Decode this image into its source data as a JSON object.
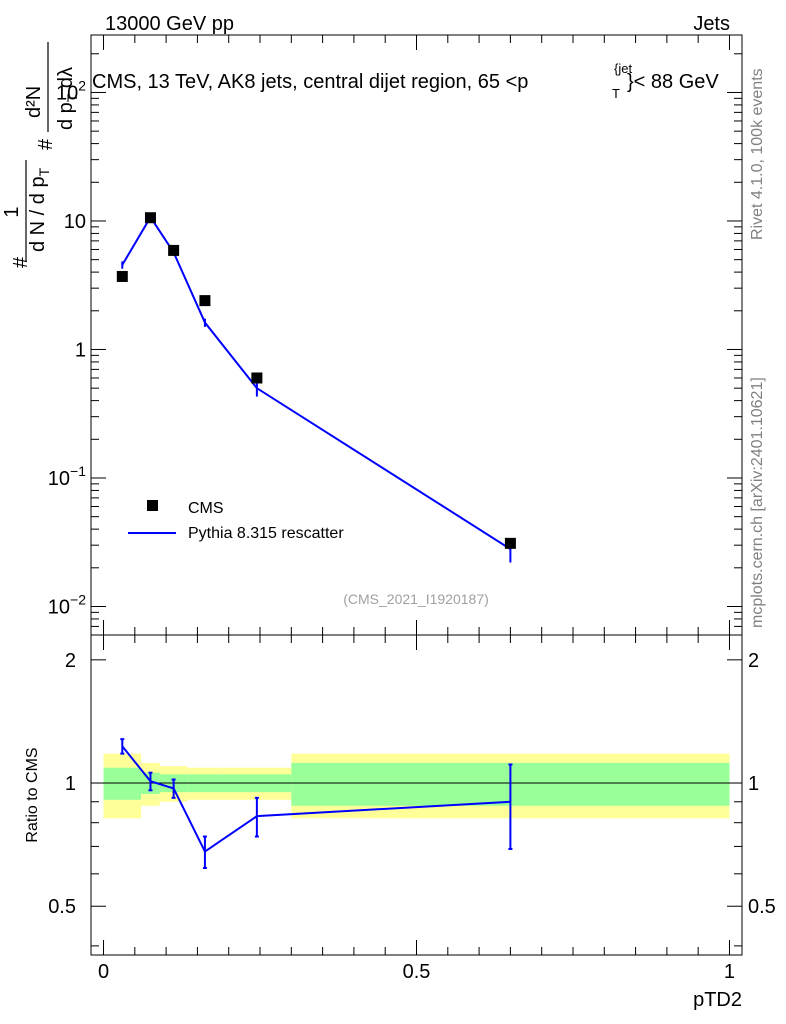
{
  "header": {
    "left": "13000 GeV pp",
    "right": "Jets"
  },
  "plot_title": {
    "main": "CMS, 13 TeV, AK8 jets, central dijet region, 65 <p",
    "sub": "T",
    "sup": "{jet",
    "close": "}< 88 GeV"
  },
  "y_label_main": {
    "frac1_num": "1",
    "frac1_den": "d N / d p",
    "frac1_den_sub": "T",
    "hash_left": "#",
    "frac2_num": "d²N",
    "frac2_den": "d p",
    "frac2_den_sub": "T",
    "frac2_den_tail": " dλ",
    "hash_mid": "#"
  },
  "side_labels": {
    "rivet": "Rivet 4.1.0,  100k events",
    "mcplots": "mcplots.cern.ch [arXiv:2401.10621]"
  },
  "analysis_tag": "(CMS_2021_I1920187)",
  "legend": {
    "data_label": "CMS",
    "mc_label": "Pythia 8.315 rescatter"
  },
  "ratio_ylabel": "Ratio to CMS",
  "x_axis_label": "pTD2",
  "colors": {
    "mc_line": "#0000ff",
    "data_marker": "#000000",
    "band_inner": "#99ff99",
    "band_outer": "#ffff99"
  },
  "main_ticks": {
    "labels": [
      {
        "base": "10",
        "exp": "2",
        "value": 100
      },
      {
        "base": "10",
        "exp": "",
        "value": 10
      },
      {
        "base": "1",
        "exp": "",
        "value": 1
      },
      {
        "base": "10",
        "exp": "−1",
        "value": 0.1
      },
      {
        "base": "10",
        "exp": "−2",
        "value": 0.01
      }
    ]
  },
  "ratio_ticks": [
    {
      "label": "2",
      "value": 2
    },
    {
      "label": "1",
      "value": 1
    },
    {
      "label": "0.5",
      "value": 0.5
    }
  ],
  "x_ticks": [
    {
      "label": "0",
      "value": 0
    },
    {
      "label": "0.5",
      "value": 0.5
    },
    {
      "label": "1",
      "value": 1
    }
  ],
  "chart_data": {
    "type": "scatter",
    "title": "CMS, 13 TeV, AK8 jets, central dijet region, 65 < pT jet < 88 GeV",
    "xlabel": "pTD2",
    "ylabel": "(1 / (d N / d pT)) d²N / (d pT dλ)",
    "xlim": [
      -0.02,
      1.02
    ],
    "ylim_main": [
      0.006,
      280
    ],
    "yscale_main": "log",
    "ylim_ratio": [
      0.38,
      2.3
    ],
    "yscale_ratio": "log",
    "data": {
      "name": "CMS",
      "x": [
        0.03,
        0.075,
        0.112,
        0.162,
        0.245,
        0.65
      ],
      "y": [
        3.7,
        10.6,
        5.9,
        2.4,
        0.6,
        0.031
      ],
      "xerr_lo": [
        0.03,
        0.015,
        0.022,
        0.028,
        0.055,
        0.35
      ],
      "xerr_hi": [
        0.03,
        0.015,
        0.022,
        0.028,
        0.055,
        0.35
      ],
      "band_stat": [
        0.09,
        0.06,
        0.05,
        0.05,
        0.05,
        0.12
      ],
      "band_total": [
        0.18,
        0.12,
        0.1,
        0.09,
        0.09,
        0.18
      ]
    },
    "mc": {
      "name": "Pythia 8.315 rescatter",
      "x": [
        0.03,
        0.075,
        0.112,
        0.162,
        0.245,
        0.65
      ],
      "y": [
        4.55,
        10.7,
        5.7,
        1.62,
        0.5,
        0.028
      ],
      "yerr": [
        0.3,
        0.55,
        0.3,
        0.12,
        0.07,
        0.006
      ]
    },
    "ratio": {
      "x": [
        0.03,
        0.075,
        0.112,
        0.162,
        0.245,
        0.65
      ],
      "y": [
        1.23,
        1.01,
        0.97,
        0.68,
        0.83,
        0.9
      ],
      "yerr": [
        0.05,
        0.05,
        0.05,
        0.06,
        0.09,
        0.21
      ]
    }
  }
}
